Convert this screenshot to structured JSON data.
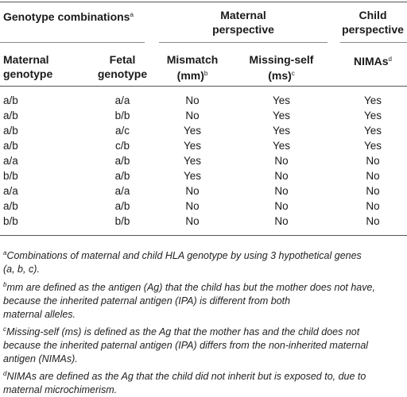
{
  "headers": {
    "genotype_combinations": "Genotype combinations",
    "genotype_combinations_sup": "a",
    "maternal_perspective_l1": "Maternal",
    "maternal_perspective_l2": "perspective",
    "child_perspective_l1": "Child",
    "child_perspective_l2": "perspective",
    "maternal_genotype_l1": "Maternal",
    "maternal_genotype_l2": "genotype",
    "fetal_genotype_l1": "Fetal",
    "fetal_genotype_l2": "genotype",
    "mismatch_l1": "Mismatch",
    "mismatch_l2": "(mm)",
    "mismatch_sup": "b",
    "missing_self_l1": "Missing-self",
    "missing_self_l2": "(ms)",
    "missing_self_sup": "c",
    "nimas": "NIMAs",
    "nimas_sup": "d"
  },
  "rows": [
    [
      "a/b",
      "a/a",
      "No",
      "Yes",
      "Yes"
    ],
    [
      "a/b",
      "b/b",
      "No",
      "Yes",
      "Yes"
    ],
    [
      "a/b",
      "a/c",
      "Yes",
      "Yes",
      "Yes"
    ],
    [
      "a/b",
      "c/b",
      "Yes",
      "Yes",
      "Yes"
    ],
    [
      "a/a",
      "a/b",
      "Yes",
      "No",
      "No"
    ],
    [
      "b/b",
      "a/b",
      "Yes",
      "No",
      "No"
    ],
    [
      "a/a",
      "a/a",
      "No",
      "No",
      "No"
    ],
    [
      "a/b",
      "a/b",
      "No",
      "No",
      "No"
    ],
    [
      "b/b",
      "b/b",
      "No",
      "No",
      "No"
    ]
  ],
  "footnotes": [
    {
      "mark": "a",
      "lines": [
        "Combinations of maternal and child HLA genotype by using 3 hypothetical genes",
        "(a, b, c)."
      ]
    },
    {
      "mark": "b",
      "lines": [
        "mm are defined as the antigen (Ag) that the child has but the mother does not have,",
        "because the inherited paternal antigen (IPA) is different from both",
        "maternal alleles."
      ]
    },
    {
      "mark": "c",
      "lines": [
        "Missing-self (ms) is defined as the Ag that the mother has and the child does not",
        "because the inherited paternal antigen (IPA) differs from the non-inherited maternal",
        "antigen (NIMAs)."
      ]
    },
    {
      "mark": "d",
      "lines": [
        "NIMAs are defined as the Ag that the child did not inherit but is exposed to, due to",
        "maternal microchimerism."
      ]
    }
  ]
}
